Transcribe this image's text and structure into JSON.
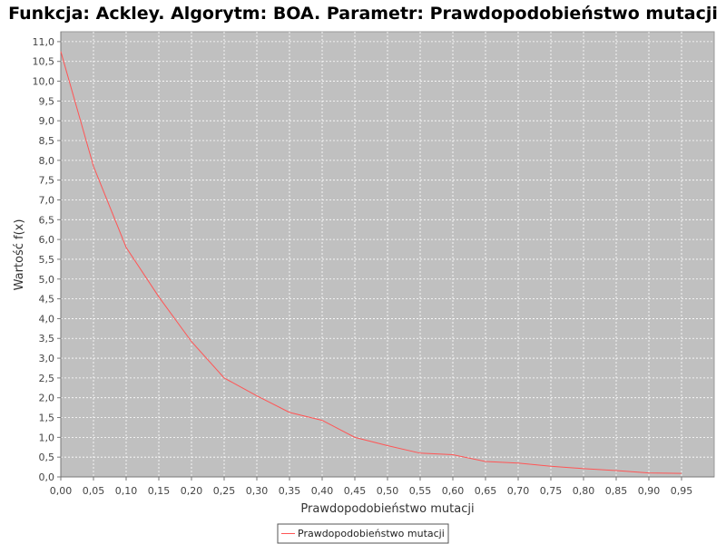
{
  "chart_data": {
    "type": "line",
    "title": "Funkcja: Ackley. Algorytm: BOA. Parametr: Prawdopodobieństwo mutacji",
    "xlabel": "Prawdopodobieństwo mutacji",
    "ylabel": "Wartość f(x)",
    "xlim": [
      0.0,
      1.0
    ],
    "ylim": [
      0.0,
      11.25
    ],
    "x_ticks": [
      "0,00",
      "0,05",
      "0,10",
      "0,15",
      "0,20",
      "0,25",
      "0,30",
      "0,35",
      "0,40",
      "0,45",
      "0,50",
      "0,55",
      "0,60",
      "0,65",
      "0,70",
      "0,75",
      "0,80",
      "0,85",
      "0,90",
      "0,95"
    ],
    "y_ticks": [
      "0,0",
      "0,5",
      "1,0",
      "1,5",
      "2,0",
      "2,5",
      "3,0",
      "3,5",
      "4,0",
      "4,5",
      "5,0",
      "5,5",
      "6,0",
      "6,5",
      "7,0",
      "7,5",
      "8,0",
      "8,5",
      "9,0",
      "9,5",
      "10,0",
      "10,5",
      "11,0"
    ],
    "grid": true,
    "background_color": "#c0c0c0",
    "line_color": "#ff5555",
    "legend_position": "bottom-center",
    "series": [
      {
        "name": "Prawdopodobieństwo mutacji",
        "x": [
          0.0,
          0.05,
          0.1,
          0.15,
          0.2,
          0.25,
          0.3,
          0.35,
          0.4,
          0.45,
          0.5,
          0.55,
          0.6,
          0.65,
          0.7,
          0.75,
          0.8,
          0.85,
          0.9,
          0.95
        ],
        "y": [
          10.75,
          7.85,
          5.8,
          4.55,
          3.42,
          2.5,
          2.05,
          1.63,
          1.43,
          1.0,
          0.79,
          0.6,
          0.56,
          0.39,
          0.35,
          0.27,
          0.21,
          0.16,
          0.1,
          0.09
        ]
      }
    ]
  }
}
